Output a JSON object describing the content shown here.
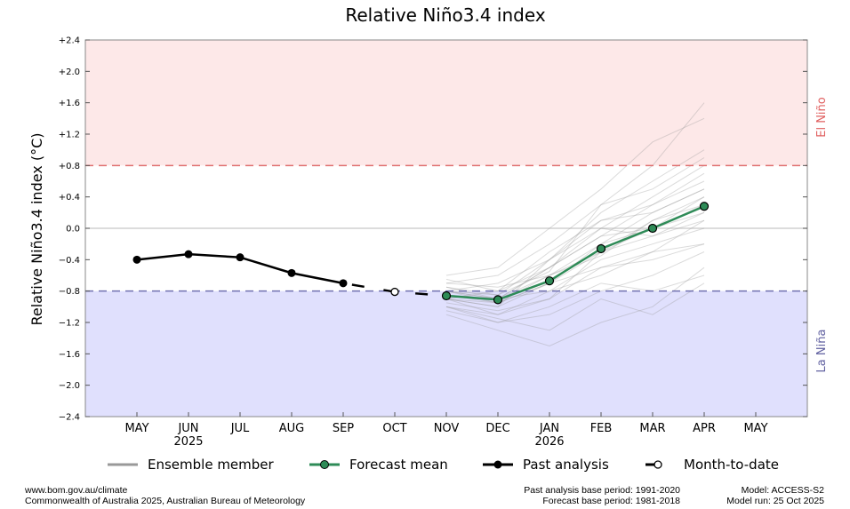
{
  "chart_data": {
    "type": "line",
    "title": "Relative Niño3.4 index",
    "ylabel": "Relative Niño3.4 index (°C)",
    "ylim": [
      -2.4,
      2.4
    ],
    "yticks": [
      "+2.4",
      "+2.0",
      "+1.6",
      "+1.2",
      "+0.8",
      "+0.4",
      "0.0",
      "−0.4",
      "−0.8",
      "−1.2",
      "−1.6",
      "−2.0",
      "−2.4"
    ],
    "ytick_values": [
      2.4,
      2.0,
      1.6,
      1.2,
      0.8,
      0.4,
      0,
      -0.4,
      -0.8,
      -1.2,
      -1.6,
      -2.0,
      -2.4
    ],
    "x_categories": [
      "MAY",
      "JUN",
      "JUL",
      "AUG",
      "SEP",
      "OCT",
      "NOV",
      "DEC",
      "JAN",
      "FEB",
      "MAR",
      "APR",
      "MAY"
    ],
    "year_labels": [
      {
        "month_index": 1,
        "label": "2025"
      },
      {
        "month_index": 8,
        "label": "2026"
      }
    ],
    "thresholds": {
      "el_nino": 0.8,
      "la_nina": -0.8
    },
    "region_labels": {
      "el_nino": "El Niño",
      "la_nina": "La Niña"
    },
    "colors": {
      "el_nino_fill": "#fde8e8",
      "la_nina_fill": "#e0e0fd",
      "el_nino_line": "#e07070",
      "la_nina_line": "#7070b0",
      "el_nino_text": "#e06060",
      "la_nina_text": "#6060a0",
      "forecast": "#2e8b57",
      "ensemble": "#999999",
      "past": "#000000"
    },
    "past_analysis": {
      "name": "Past analysis",
      "month_indices": [
        0,
        1,
        2,
        3,
        4
      ],
      "values": [
        -0.4,
        -0.33,
        -0.37,
        -0.57,
        -0.7
      ]
    },
    "month_to_date": {
      "name": "Month-to-date",
      "month_index": 5,
      "value": -0.81
    },
    "forecast_mean": {
      "name": "Forecast mean",
      "month_indices": [
        6,
        7,
        8,
        9,
        10,
        11
      ],
      "values": [
        -0.86,
        -0.91,
        -0.67,
        -0.26,
        0.0,
        0.28
      ]
    },
    "ensemble": {
      "name": "Ensemble member",
      "month_indices": [
        6,
        7,
        8,
        9,
        10,
        11
      ],
      "members": [
        [
          -0.7,
          -0.6,
          -0.2,
          0.3,
          0.5,
          0.9
        ],
        [
          -0.8,
          -0.9,
          -0.5,
          0.0,
          0.4,
          0.8
        ],
        [
          -0.9,
          -1.1,
          -0.9,
          -0.5,
          -0.3,
          0.1
        ],
        [
          -1.0,
          -1.2,
          -1.1,
          -0.8,
          -0.6,
          -0.3
        ],
        [
          -0.8,
          -0.7,
          -0.4,
          0.1,
          0.3,
          0.6
        ],
        [
          -0.9,
          -1.0,
          -0.7,
          -0.3,
          0.1,
          0.4
        ],
        [
          -0.6,
          -0.5,
          0.0,
          0.5,
          1.1,
          1.4
        ],
        [
          -1.1,
          -1.3,
          -1.5,
          -1.2,
          -1.0,
          -0.5
        ],
        [
          -0.85,
          -0.95,
          -0.6,
          -0.2,
          0.2,
          0.5
        ],
        [
          -0.9,
          -0.8,
          -0.5,
          -0.1,
          0.0,
          0.3
        ],
        [
          -0.75,
          -0.9,
          -0.8,
          -0.4,
          -0.2,
          0.0
        ],
        [
          -1.0,
          -1.1,
          -0.8,
          -0.6,
          -0.3,
          -0.2
        ],
        [
          -0.8,
          -0.85,
          -0.4,
          0.2,
          0.6,
          1.0
        ],
        [
          -0.95,
          -1.05,
          -0.9,
          -0.3,
          -0.1,
          0.2
        ],
        [
          -0.7,
          -0.75,
          -0.6,
          -0.3,
          0.0,
          0.2
        ],
        [
          -0.9,
          -0.95,
          -0.7,
          -0.5,
          -0.4,
          -0.2
        ],
        [
          -0.8,
          -0.9,
          -0.5,
          -0.1,
          0.3,
          0.7
        ],
        [
          -1.05,
          -1.2,
          -1.0,
          -0.7,
          -0.8,
          -0.6
        ],
        [
          -0.85,
          -0.9,
          -0.6,
          -0.35,
          0.1,
          0.3
        ],
        [
          -0.65,
          -0.8,
          -0.3,
          0.1,
          0.2,
          0.5
        ],
        [
          -0.9,
          -1.0,
          -0.4,
          0.0,
          -0.1,
          0.1
        ],
        [
          -0.8,
          -0.95,
          -0.7,
          -0.2,
          0.0,
          0.4
        ],
        [
          -1.0,
          -1.15,
          -1.3,
          -0.9,
          -1.1,
          -0.7
        ],
        [
          -0.75,
          -0.85,
          -0.55,
          0.3,
          0.8,
          1.6
        ]
      ]
    },
    "legend": [
      "Ensemble member",
      "Forecast mean",
      "Past analysis",
      "Month-to-date"
    ],
    "legend_position": "bottom",
    "grid": false
  },
  "footer": {
    "left1": "www.bom.gov.au/climate",
    "left2": "Commonwealth of Australia 2025, Australian Bureau of Meteorology",
    "mid1": "Past analysis base period: 1991-2020",
    "mid2": "Forecast base period: 1981-2018",
    "right1": "Model: ACCESS-S2",
    "right2": "Model run: 25 Oct 2025"
  }
}
